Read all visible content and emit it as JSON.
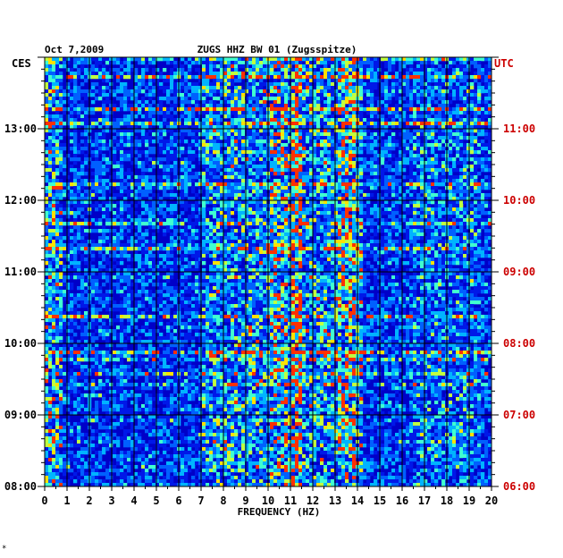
{
  "chart_data": {
    "type": "heatmap",
    "title_left": "Oct 7,2009",
    "title": "ZUGS HHZ BW 01 (Zugsspitze)",
    "left_zone": "CES",
    "right_zone": "UTC",
    "xlabel": "FREQUENCY (HZ)",
    "xlim": [
      0,
      20
    ],
    "x_ticks": [
      "0",
      "1",
      "2",
      "3",
      "4",
      "5",
      "6",
      "7",
      "8",
      "9",
      "10",
      "11",
      "12",
      "13",
      "14",
      "15",
      "16",
      "17",
      "18",
      "19",
      "20"
    ],
    "y_ticks_local": [
      "13:00",
      "12:00",
      "11:00",
      "10:00",
      "09:00",
      "08:00"
    ],
    "y_ticks_utc": [
      "11:00",
      "10:00",
      "09:00",
      "08:00",
      "07:00",
      "06:00"
    ],
    "time_range_local": [
      "08:00",
      "14:00"
    ],
    "colors": {
      "background": "#0000c8",
      "low": "#0010e0",
      "mid": "#00c0ff",
      "high": "#ffff00",
      "peak": "#ff2000"
    },
    "footer_mark": "*"
  }
}
